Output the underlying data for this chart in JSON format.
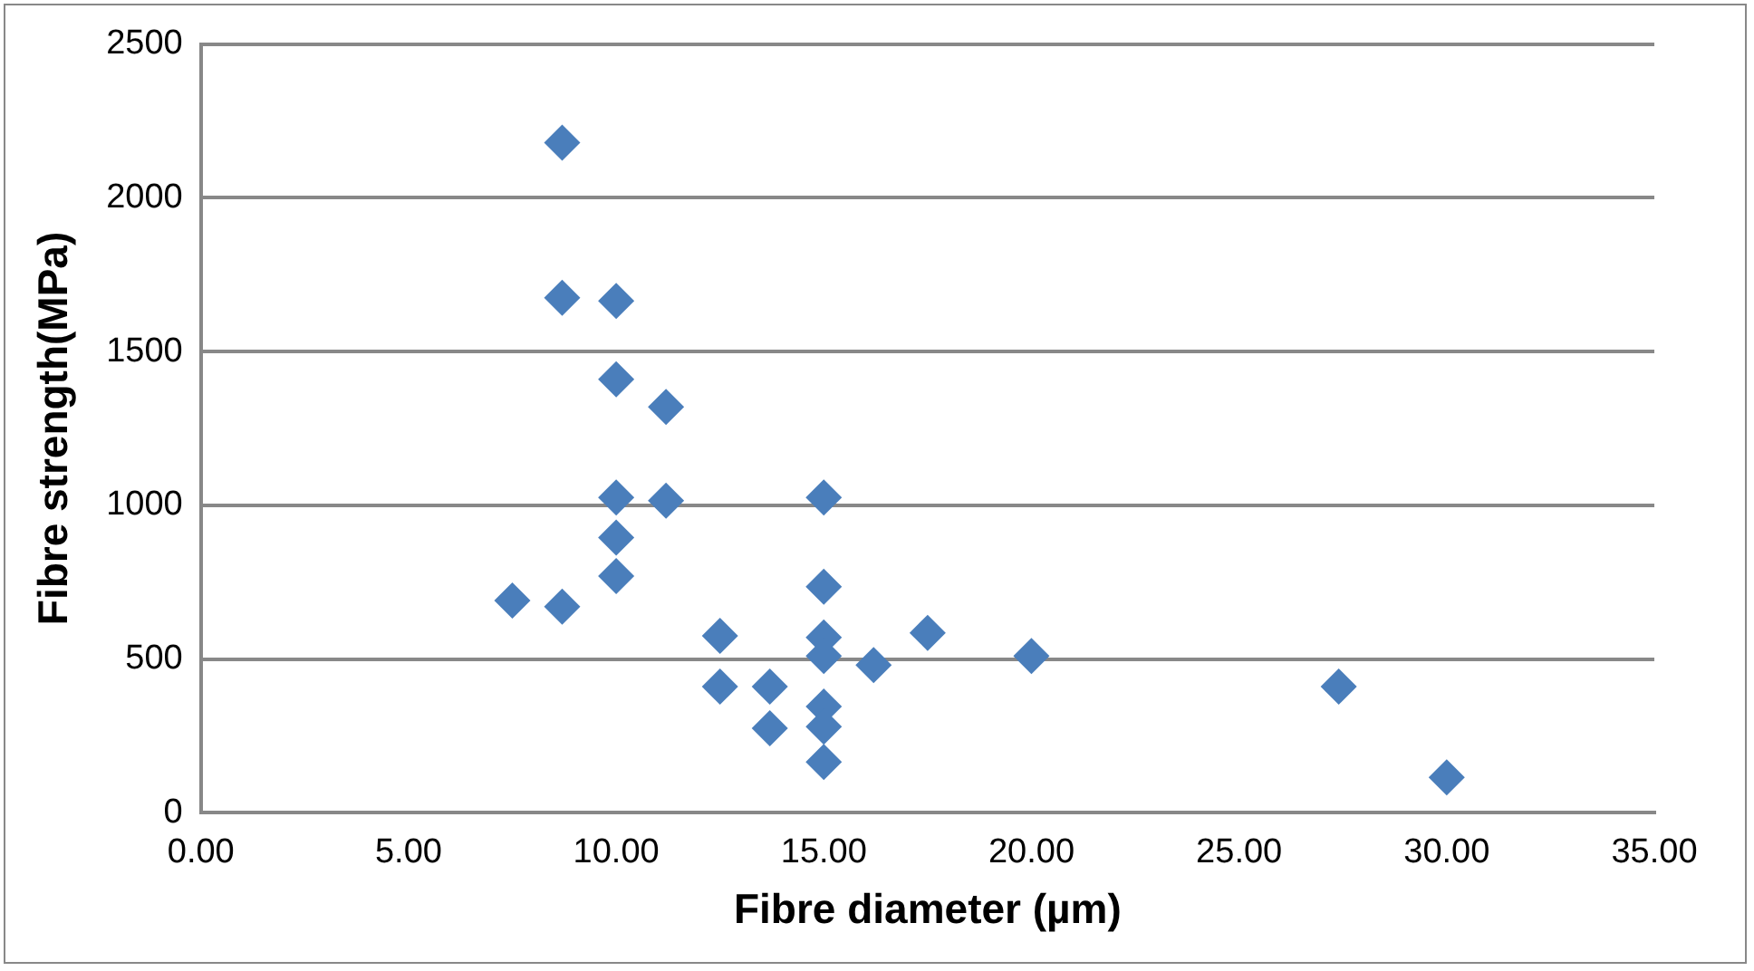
{
  "chart_data": {
    "type": "scatter",
    "xlabel": "Fibre diameter (µm)",
    "ylabel": "Fibre strength(MPa)",
    "x": [
      8.7,
      8.7,
      10,
      10,
      11.2,
      10,
      11.2,
      15,
      10,
      10,
      7.5,
      8.7,
      12.5,
      15,
      15,
      15,
      16.2,
      17.5,
      20,
      12.5,
      13.7,
      13.7,
      15,
      15,
      15,
      27.4,
      30
    ],
    "series": [
      {
        "color": "#4a7ebb",
        "values": [
          2180,
          1675,
          1665,
          1410,
          1320,
          1025,
          1015,
          1025,
          895,
          770,
          690,
          670,
          575,
          735,
          570,
          510,
          480,
          585,
          510,
          410,
          410,
          275,
          345,
          280,
          165,
          410,
          115
        ]
      }
    ],
    "xlim": [
      0,
      35
    ],
    "xticks": [
      {
        "value": 0,
        "label": "0.00"
      },
      {
        "value": 5,
        "label": "5.00"
      },
      {
        "value": 10,
        "label": "10.00"
      },
      {
        "value": 15,
        "label": "15.00"
      },
      {
        "value": 20,
        "label": "20.00"
      },
      {
        "value": 25,
        "label": "25.00"
      },
      {
        "value": 30,
        "label": "30.00"
      },
      {
        "value": 35,
        "label": "35.00"
      }
    ],
    "ylim": [
      0,
      2500
    ],
    "yticks": [
      0,
      500,
      1000,
      1500,
      2000,
      2500
    ],
    "grid": "y",
    "legend": false,
    "marker": "diamond"
  }
}
